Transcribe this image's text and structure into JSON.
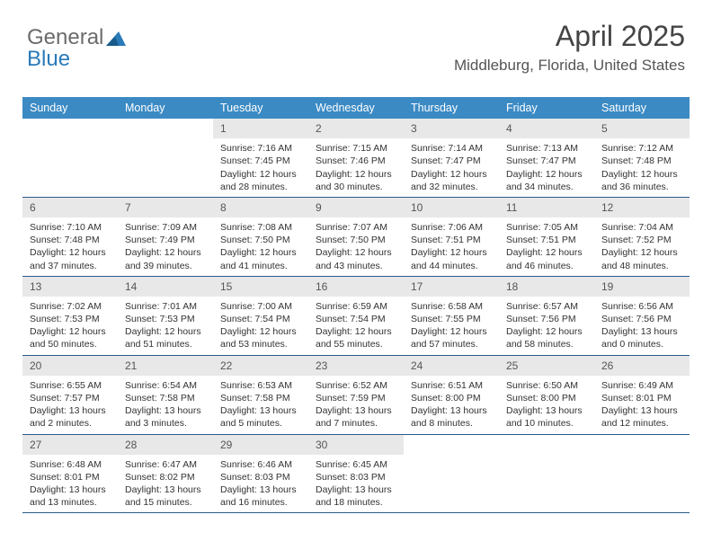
{
  "brand": {
    "part1": "General",
    "part2": "Blue"
  },
  "title": "April 2025",
  "location": "Middleburg, Florida, United States",
  "colors": {
    "header_bg": "#3b8ac4",
    "header_text": "#ffffff",
    "daynum_bg": "#e8e8e8",
    "week_border": "#2a5a8a",
    "text": "#333333",
    "brand_gray": "#6b6b6b",
    "brand_blue": "#2a7ab8"
  },
  "day_headers": [
    "Sunday",
    "Monday",
    "Tuesday",
    "Wednesday",
    "Thursday",
    "Friday",
    "Saturday"
  ],
  "weeks": [
    [
      null,
      null,
      {
        "n": "1",
        "sunrise": "Sunrise: 7:16 AM",
        "sunset": "Sunset: 7:45 PM",
        "d1": "Daylight: 12 hours",
        "d2": "and 28 minutes."
      },
      {
        "n": "2",
        "sunrise": "Sunrise: 7:15 AM",
        "sunset": "Sunset: 7:46 PM",
        "d1": "Daylight: 12 hours",
        "d2": "and 30 minutes."
      },
      {
        "n": "3",
        "sunrise": "Sunrise: 7:14 AM",
        "sunset": "Sunset: 7:47 PM",
        "d1": "Daylight: 12 hours",
        "d2": "and 32 minutes."
      },
      {
        "n": "4",
        "sunrise": "Sunrise: 7:13 AM",
        "sunset": "Sunset: 7:47 PM",
        "d1": "Daylight: 12 hours",
        "d2": "and 34 minutes."
      },
      {
        "n": "5",
        "sunrise": "Sunrise: 7:12 AM",
        "sunset": "Sunset: 7:48 PM",
        "d1": "Daylight: 12 hours",
        "d2": "and 36 minutes."
      }
    ],
    [
      {
        "n": "6",
        "sunrise": "Sunrise: 7:10 AM",
        "sunset": "Sunset: 7:48 PM",
        "d1": "Daylight: 12 hours",
        "d2": "and 37 minutes."
      },
      {
        "n": "7",
        "sunrise": "Sunrise: 7:09 AM",
        "sunset": "Sunset: 7:49 PM",
        "d1": "Daylight: 12 hours",
        "d2": "and 39 minutes."
      },
      {
        "n": "8",
        "sunrise": "Sunrise: 7:08 AM",
        "sunset": "Sunset: 7:50 PM",
        "d1": "Daylight: 12 hours",
        "d2": "and 41 minutes."
      },
      {
        "n": "9",
        "sunrise": "Sunrise: 7:07 AM",
        "sunset": "Sunset: 7:50 PM",
        "d1": "Daylight: 12 hours",
        "d2": "and 43 minutes."
      },
      {
        "n": "10",
        "sunrise": "Sunrise: 7:06 AM",
        "sunset": "Sunset: 7:51 PM",
        "d1": "Daylight: 12 hours",
        "d2": "and 44 minutes."
      },
      {
        "n": "11",
        "sunrise": "Sunrise: 7:05 AM",
        "sunset": "Sunset: 7:51 PM",
        "d1": "Daylight: 12 hours",
        "d2": "and 46 minutes."
      },
      {
        "n": "12",
        "sunrise": "Sunrise: 7:04 AM",
        "sunset": "Sunset: 7:52 PM",
        "d1": "Daylight: 12 hours",
        "d2": "and 48 minutes."
      }
    ],
    [
      {
        "n": "13",
        "sunrise": "Sunrise: 7:02 AM",
        "sunset": "Sunset: 7:53 PM",
        "d1": "Daylight: 12 hours",
        "d2": "and 50 minutes."
      },
      {
        "n": "14",
        "sunrise": "Sunrise: 7:01 AM",
        "sunset": "Sunset: 7:53 PM",
        "d1": "Daylight: 12 hours",
        "d2": "and 51 minutes."
      },
      {
        "n": "15",
        "sunrise": "Sunrise: 7:00 AM",
        "sunset": "Sunset: 7:54 PM",
        "d1": "Daylight: 12 hours",
        "d2": "and 53 minutes."
      },
      {
        "n": "16",
        "sunrise": "Sunrise: 6:59 AM",
        "sunset": "Sunset: 7:54 PM",
        "d1": "Daylight: 12 hours",
        "d2": "and 55 minutes."
      },
      {
        "n": "17",
        "sunrise": "Sunrise: 6:58 AM",
        "sunset": "Sunset: 7:55 PM",
        "d1": "Daylight: 12 hours",
        "d2": "and 57 minutes."
      },
      {
        "n": "18",
        "sunrise": "Sunrise: 6:57 AM",
        "sunset": "Sunset: 7:56 PM",
        "d1": "Daylight: 12 hours",
        "d2": "and 58 minutes."
      },
      {
        "n": "19",
        "sunrise": "Sunrise: 6:56 AM",
        "sunset": "Sunset: 7:56 PM",
        "d1": "Daylight: 13 hours",
        "d2": "and 0 minutes."
      }
    ],
    [
      {
        "n": "20",
        "sunrise": "Sunrise: 6:55 AM",
        "sunset": "Sunset: 7:57 PM",
        "d1": "Daylight: 13 hours",
        "d2": "and 2 minutes."
      },
      {
        "n": "21",
        "sunrise": "Sunrise: 6:54 AM",
        "sunset": "Sunset: 7:58 PM",
        "d1": "Daylight: 13 hours",
        "d2": "and 3 minutes."
      },
      {
        "n": "22",
        "sunrise": "Sunrise: 6:53 AM",
        "sunset": "Sunset: 7:58 PM",
        "d1": "Daylight: 13 hours",
        "d2": "and 5 minutes."
      },
      {
        "n": "23",
        "sunrise": "Sunrise: 6:52 AM",
        "sunset": "Sunset: 7:59 PM",
        "d1": "Daylight: 13 hours",
        "d2": "and 7 minutes."
      },
      {
        "n": "24",
        "sunrise": "Sunrise: 6:51 AM",
        "sunset": "Sunset: 8:00 PM",
        "d1": "Daylight: 13 hours",
        "d2": "and 8 minutes."
      },
      {
        "n": "25",
        "sunrise": "Sunrise: 6:50 AM",
        "sunset": "Sunset: 8:00 PM",
        "d1": "Daylight: 13 hours",
        "d2": "and 10 minutes."
      },
      {
        "n": "26",
        "sunrise": "Sunrise: 6:49 AM",
        "sunset": "Sunset: 8:01 PM",
        "d1": "Daylight: 13 hours",
        "d2": "and 12 minutes."
      }
    ],
    [
      {
        "n": "27",
        "sunrise": "Sunrise: 6:48 AM",
        "sunset": "Sunset: 8:01 PM",
        "d1": "Daylight: 13 hours",
        "d2": "and 13 minutes."
      },
      {
        "n": "28",
        "sunrise": "Sunrise: 6:47 AM",
        "sunset": "Sunset: 8:02 PM",
        "d1": "Daylight: 13 hours",
        "d2": "and 15 minutes."
      },
      {
        "n": "29",
        "sunrise": "Sunrise: 6:46 AM",
        "sunset": "Sunset: 8:03 PM",
        "d1": "Daylight: 13 hours",
        "d2": "and 16 minutes."
      },
      {
        "n": "30",
        "sunrise": "Sunrise: 6:45 AM",
        "sunset": "Sunset: 8:03 PM",
        "d1": "Daylight: 13 hours",
        "d2": "and 18 minutes."
      },
      null,
      null,
      null
    ]
  ]
}
